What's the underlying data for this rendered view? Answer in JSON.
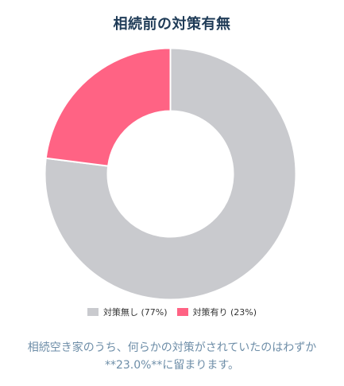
{
  "chart_data": {
    "type": "pie",
    "title": "相続前の対策有無",
    "categories": [
      "対策無し",
      "対策有り"
    ],
    "values": [
      77,
      23
    ],
    "colors": [
      "#c9cace",
      "#ff6384"
    ],
    "donut": true,
    "legend_position": "bottom",
    "legend": [
      {
        "label": "対策無し (77%)",
        "color": "#c9cace"
      },
      {
        "label": "対策有り (23%)",
        "color": "#ff6384"
      }
    ]
  },
  "caption": {
    "line1": "相続空き家のうち、何らかの対策がされていたのはわずか",
    "line2": "**23.0%**に留まります。"
  }
}
